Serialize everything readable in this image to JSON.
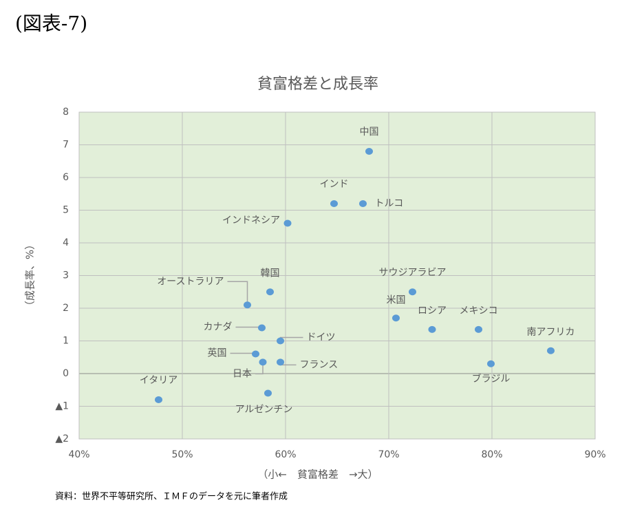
{
  "header": "(図表-7)",
  "chart_data": {
    "type": "scatter",
    "title": "貧富格差と成長率",
    "xlabel": "（小←　貧富格差　→大）",
    "ylabel": "（成長率、%）",
    "color": "#5b9bd5",
    "grid": true,
    "xlim": [
      40,
      90
    ],
    "xticks": [
      {
        "value": 40,
        "label": "40%"
      },
      {
        "value": 50,
        "label": "50%"
      },
      {
        "value": 60,
        "label": "60%"
      },
      {
        "value": 70,
        "label": "70%"
      },
      {
        "value": 80,
        "label": "80%"
      },
      {
        "value": 90,
        "label": "90%"
      }
    ],
    "ylim": [
      -2,
      8
    ],
    "yticks": [
      {
        "value": -2,
        "label": "▲2"
      },
      {
        "value": -1,
        "label": "▲1"
      },
      0,
      1,
      2,
      3,
      4,
      5,
      6,
      7,
      8
    ],
    "points": [
      {
        "label": "中国",
        "x": 68.1,
        "y": 6.8
      },
      {
        "label": "インド",
        "x": 64.7,
        "y": 5.2
      },
      {
        "label": "トルコ",
        "x": 67.5,
        "y": 5.2
      },
      {
        "label": "インドネシア",
        "x": 60.2,
        "y": 4.6
      },
      {
        "label": "韓国",
        "x": 58.5,
        "y": 2.5
      },
      {
        "label": "オーストラリア",
        "x": 56.3,
        "y": 2.1
      },
      {
        "label": "サウジアラビア",
        "x": 72.3,
        "y": 2.5
      },
      {
        "label": "米国",
        "x": 70.7,
        "y": 1.7
      },
      {
        "label": "ロシア",
        "x": 74.2,
        "y": 1.35
      },
      {
        "label": "メキシコ",
        "x": 78.7,
        "y": 1.35
      },
      {
        "label": "南アフリカ",
        "x": 85.7,
        "y": 0.7
      },
      {
        "label": "ブラジル",
        "x": 79.9,
        "y": 0.3
      },
      {
        "label": "カナダ",
        "x": 57.7,
        "y": 1.4
      },
      {
        "label": "ドイツ",
        "x": 59.5,
        "y": 1.0
      },
      {
        "label": "英国",
        "x": 57.1,
        "y": 0.6
      },
      {
        "label": "日本",
        "x": 57.8,
        "y": 0.35
      },
      {
        "label": "フランス",
        "x": 59.5,
        "y": 0.35
      },
      {
        "label": "イタリア",
        "x": 47.7,
        "y": -0.8
      },
      {
        "label": "アルゼンチン",
        "x": 58.3,
        "y": -0.6
      }
    ]
  },
  "source": "資料：世界不平等研究所、ＩＭＦのデータを元に筆者作成"
}
